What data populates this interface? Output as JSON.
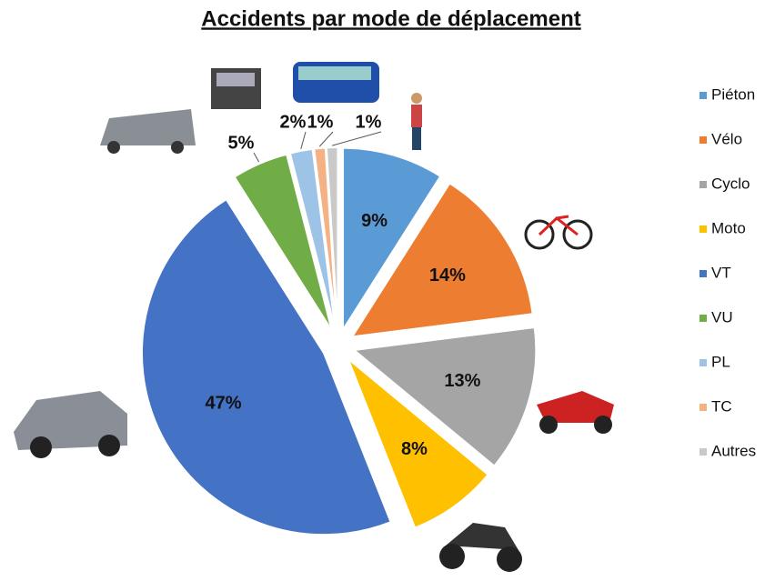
{
  "chart_data": {
    "type": "pie",
    "title": "Accidents par mode de déplacement",
    "categories": [
      "Piéton",
      "Vélo",
      "Cyclo",
      "Moto",
      "VT",
      "VU",
      "PL",
      "TC",
      "Autres"
    ],
    "values": [
      9,
      14,
      13,
      8,
      47,
      5,
      2,
      1,
      1
    ],
    "value_labels": [
      "9%",
      "14%",
      "13%",
      "8%",
      "47%",
      "5%",
      "2%",
      "1%",
      "1%"
    ],
    "colors": [
      "#5b9bd5",
      "#ed7d31",
      "#a5a5a5",
      "#ffc000",
      "#4472c4",
      "#70ad47",
      "#9dc3e6",
      "#f4b183",
      "#c9c9c9"
    ],
    "legend": "right"
  }
}
